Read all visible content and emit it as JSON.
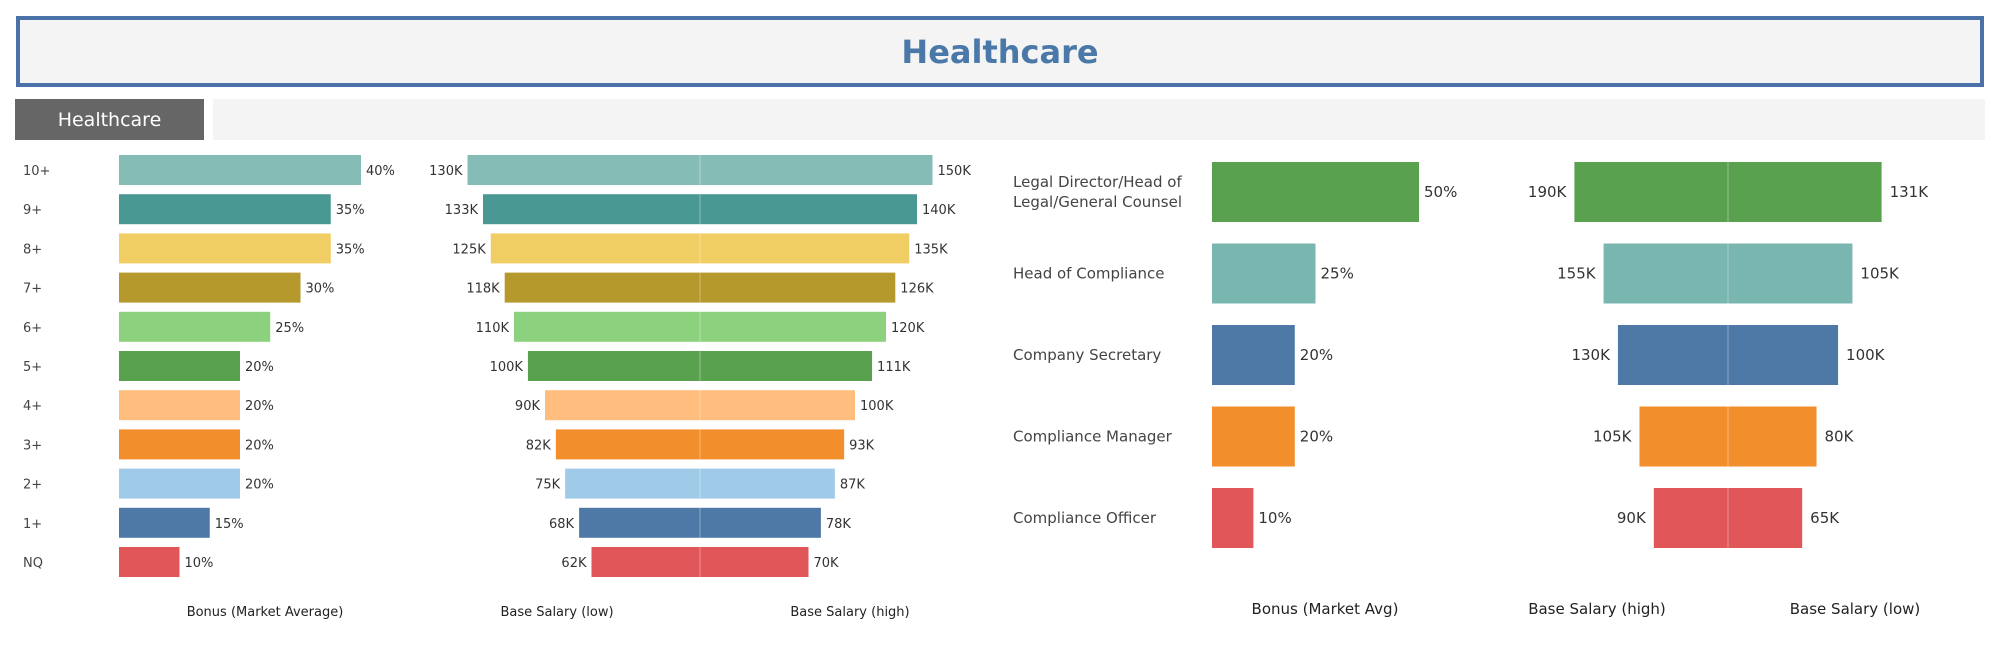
{
  "header": {
    "title": "Healthcare"
  },
  "filter": {
    "tab_label": "Healthcare"
  },
  "colors": {
    "pqe": [
      "#86bcb6",
      "#499894",
      "#f1ce63",
      "#b6992d",
      "#8cd17d",
      "#59a14f",
      "#ffbe7d",
      "#f28e2b",
      "#a0cbe8",
      "#4e79a7",
      "#e15759"
    ],
    "roles": [
      "#59a14f",
      "#79b6af",
      "#4e79a7",
      "#f28e2b",
      "#e15759"
    ]
  },
  "chart_data": [
    {
      "type": "bar",
      "categories": [
        "10+",
        "9+",
        "8+",
        "7+",
        "6+",
        "5+",
        "4+",
        "3+",
        "2+",
        "1+",
        "NQ"
      ],
      "values": [
        40,
        35,
        35,
        30,
        25,
        20,
        20,
        20,
        20,
        15,
        10
      ],
      "labels": [
        "40%",
        "35%",
        "35%",
        "30%",
        "25%",
        "20%",
        "20%",
        "20%",
        "20%",
        "15%",
        "10%"
      ],
      "xlabel": "Bonus (Market Average)"
    },
    {
      "type": "bar",
      "categories": [
        "10+",
        "9+",
        "8+",
        "7+",
        "6+",
        "5+",
        "4+",
        "3+",
        "2+",
        "1+",
        "NQ"
      ],
      "low": [
        130,
        133,
        125,
        118,
        110,
        100,
        90,
        82,
        75,
        68,
        62
      ],
      "high": [
        150,
        140,
        135,
        126,
        120,
        111,
        100,
        93,
        87,
        78,
        70
      ],
      "low_labels": [
        "130K",
        "133K",
        "125K",
        "118K",
        "110K",
        "100K",
        "90K",
        "82K",
        "75K",
        "68K",
        "62K"
      ],
      "high_labels": [
        "150K",
        "140K",
        "135K",
        "126K",
        "120K",
        "111K",
        "100K",
        "93K",
        "87K",
        "78K",
        "70K"
      ],
      "xlabel_low": "Base Salary (low)",
      "xlabel_high": "Base Salary (high)"
    },
    {
      "type": "bar",
      "categories": [
        "Legal Director/Head of Legal/General Counsel",
        "Head of Compliance",
        "Company Secretary",
        "Compliance Manager",
        "Compliance Officer"
      ],
      "category_lines": [
        [
          "Legal Director/Head of",
          "Legal/General Counsel"
        ],
        [
          "Head of Compliance"
        ],
        [
          "Company Secretary"
        ],
        [
          "Compliance Manager"
        ],
        [
          "Compliance Officer"
        ]
      ],
      "values": [
        50,
        25,
        20,
        20,
        10
      ],
      "labels": [
        "50%",
        "25%",
        "20%",
        "20%",
        "10%"
      ],
      "xlabel": "Bonus (Market Avg)"
    },
    {
      "type": "bar",
      "categories": [
        "Legal Director/Head of Legal/General Counsel",
        "Head of Compliance",
        "Company Secretary",
        "Compliance Manager",
        "Compliance Officer"
      ],
      "left": [
        190,
        155,
        130,
        105,
        90
      ],
      "right": [
        131,
        105,
        100,
        80,
        65
      ],
      "left_labels": [
        "190K",
        "155K",
        "130K",
        "105K",
        "90K"
      ],
      "right_labels": [
        "131K",
        "105K",
        "100K",
        "80K",
        "65K"
      ],
      "xlabel_left": "Base Salary (high)",
      "xlabel_right": "Base Salary (low)"
    }
  ]
}
